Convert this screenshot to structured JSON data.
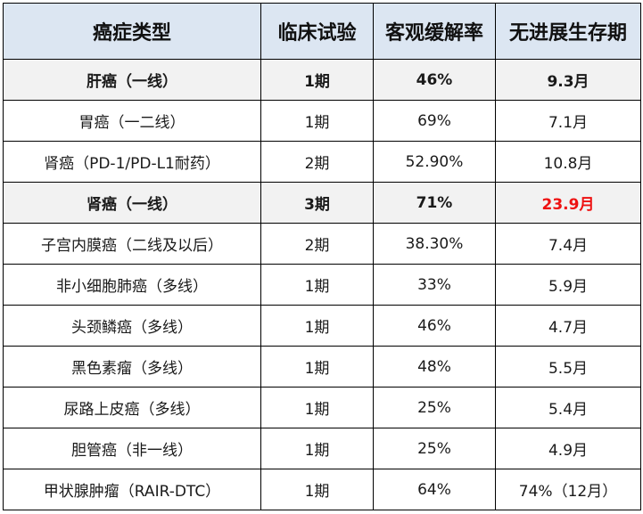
{
  "table": {
    "headers": [
      "癌症类型",
      "临床试验",
      "客观缓解率",
      "无进展生存期"
    ],
    "header_bg": "#dce6f2",
    "emphasis_color": "#ee1111",
    "rows": [
      {
        "cancer": "肝癌（一线）",
        "trial": "1期",
        "orr": "46%",
        "pfs": "9.3月",
        "bold": true
      },
      {
        "cancer": "胃癌（一二线）",
        "trial": "1期",
        "orr": "69%",
        "pfs": "7.1月",
        "bold": false
      },
      {
        "cancer": "肾癌（PD-1/PD-L1耐药）",
        "trial": "2期",
        "orr": "52.90%",
        "pfs": "10.8月",
        "bold": false
      },
      {
        "cancer": "肾癌（一线）",
        "trial": "3期",
        "orr": "71%",
        "pfs": "23.9月",
        "bold": true,
        "pfs_red": true
      },
      {
        "cancer": "子宫内膜癌（二线及以后）",
        "trial": "2期",
        "orr": "38.30%",
        "pfs": "7.4月",
        "bold": false
      },
      {
        "cancer": "非小细胞肺癌（多线）",
        "trial": "1期",
        "orr": "33%",
        "pfs": "5.9月",
        "bold": false
      },
      {
        "cancer": "头颈鳞癌（多线）",
        "trial": "1期",
        "orr": "46%",
        "pfs": "4.7月",
        "bold": false
      },
      {
        "cancer": "黑色素瘤（多线）",
        "trial": "1期",
        "orr": "48%",
        "pfs": "5.5月",
        "bold": false
      },
      {
        "cancer": "尿路上皮癌（多线）",
        "trial": "1期",
        "orr": "25%",
        "pfs": "5.4月",
        "bold": false
      },
      {
        "cancer": "胆管癌（非一线）",
        "trial": "1期",
        "orr": "25%",
        "pfs": "4.9月",
        "bold": false
      },
      {
        "cancer": "甲状腺肿瘤（RAIR-DTC）",
        "trial": "1期",
        "orr": "64%",
        "pfs": "74%（12月）",
        "bold": false
      }
    ]
  }
}
